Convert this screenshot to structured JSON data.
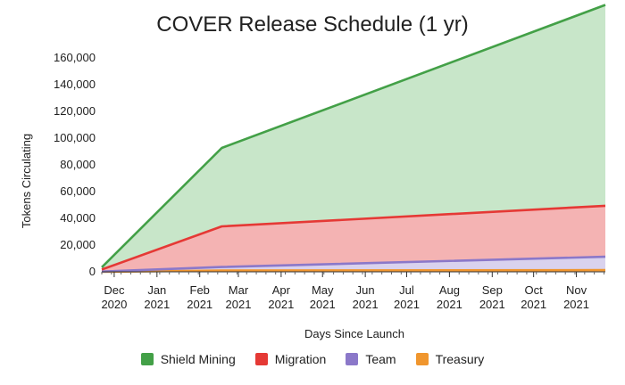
{
  "chart_data": {
    "type": "area",
    "stacked": true,
    "title": "COVER Release Schedule (1 yr)",
    "xlabel": "Days Since Launch",
    "ylabel": "Tokens Circulating",
    "ylim": [
      0,
      160000
    ],
    "yticks": [
      "0",
      "20,000",
      "40,000",
      "60,000",
      "80,000",
      "100,000",
      "120,000",
      "140,000",
      "160,000"
    ],
    "xlim": [
      "2020-11-22",
      "2021-11-22"
    ],
    "xticks": [
      {
        "date": "2020-12-01",
        "line1": "Dec",
        "line2": "2020"
      },
      {
        "date": "2021-01-01",
        "line1": "Jan",
        "line2": "2021"
      },
      {
        "date": "2021-02-01",
        "line1": "Feb",
        "line2": "2021"
      },
      {
        "date": "2021-03-01",
        "line1": "Mar",
        "line2": "2021"
      },
      {
        "date": "2021-04-01",
        "line1": "Apr",
        "line2": "2021"
      },
      {
        "date": "2021-05-01",
        "line1": "May",
        "line2": "2021"
      },
      {
        "date": "2021-06-01",
        "line1": "Jun",
        "line2": "2021"
      },
      {
        "date": "2021-07-01",
        "line1": "Jul",
        "line2": "2021"
      },
      {
        "date": "2021-08-01",
        "line1": "Aug",
        "line2": "2021"
      },
      {
        "date": "2021-09-01",
        "line1": "Sep",
        "line2": "2021"
      },
      {
        "date": "2021-10-01",
        "line1": "Oct",
        "line2": "2021"
      },
      {
        "date": "2021-11-01",
        "line1": "Nov",
        "line2": "2021"
      }
    ],
    "x": [
      "2020-11-22",
      "2021-02-17",
      "2021-11-22"
    ],
    "series": [
      {
        "name": "Treasury",
        "color": "#f0962e",
        "fill": "#fbe0bd",
        "values": [
          0,
          900,
          1300
        ]
      },
      {
        "name": "Team",
        "color": "#8b78c9",
        "fill": "#d9d2ee",
        "values": [
          200,
          2700,
          10000
        ]
      },
      {
        "name": "Migration",
        "color": "#e53935",
        "fill": "#f4b3b3",
        "values": [
          1500,
          30400,
          38100
        ]
      },
      {
        "name": "Shield Mining",
        "color": "#43a047",
        "fill": "#c8e6c9",
        "values": [
          1700,
          58700,
          150300
        ]
      }
    ],
    "legend": {
      "position": "bottom",
      "order": [
        "Shield Mining",
        "Migration",
        "Team",
        "Treasury"
      ]
    }
  }
}
